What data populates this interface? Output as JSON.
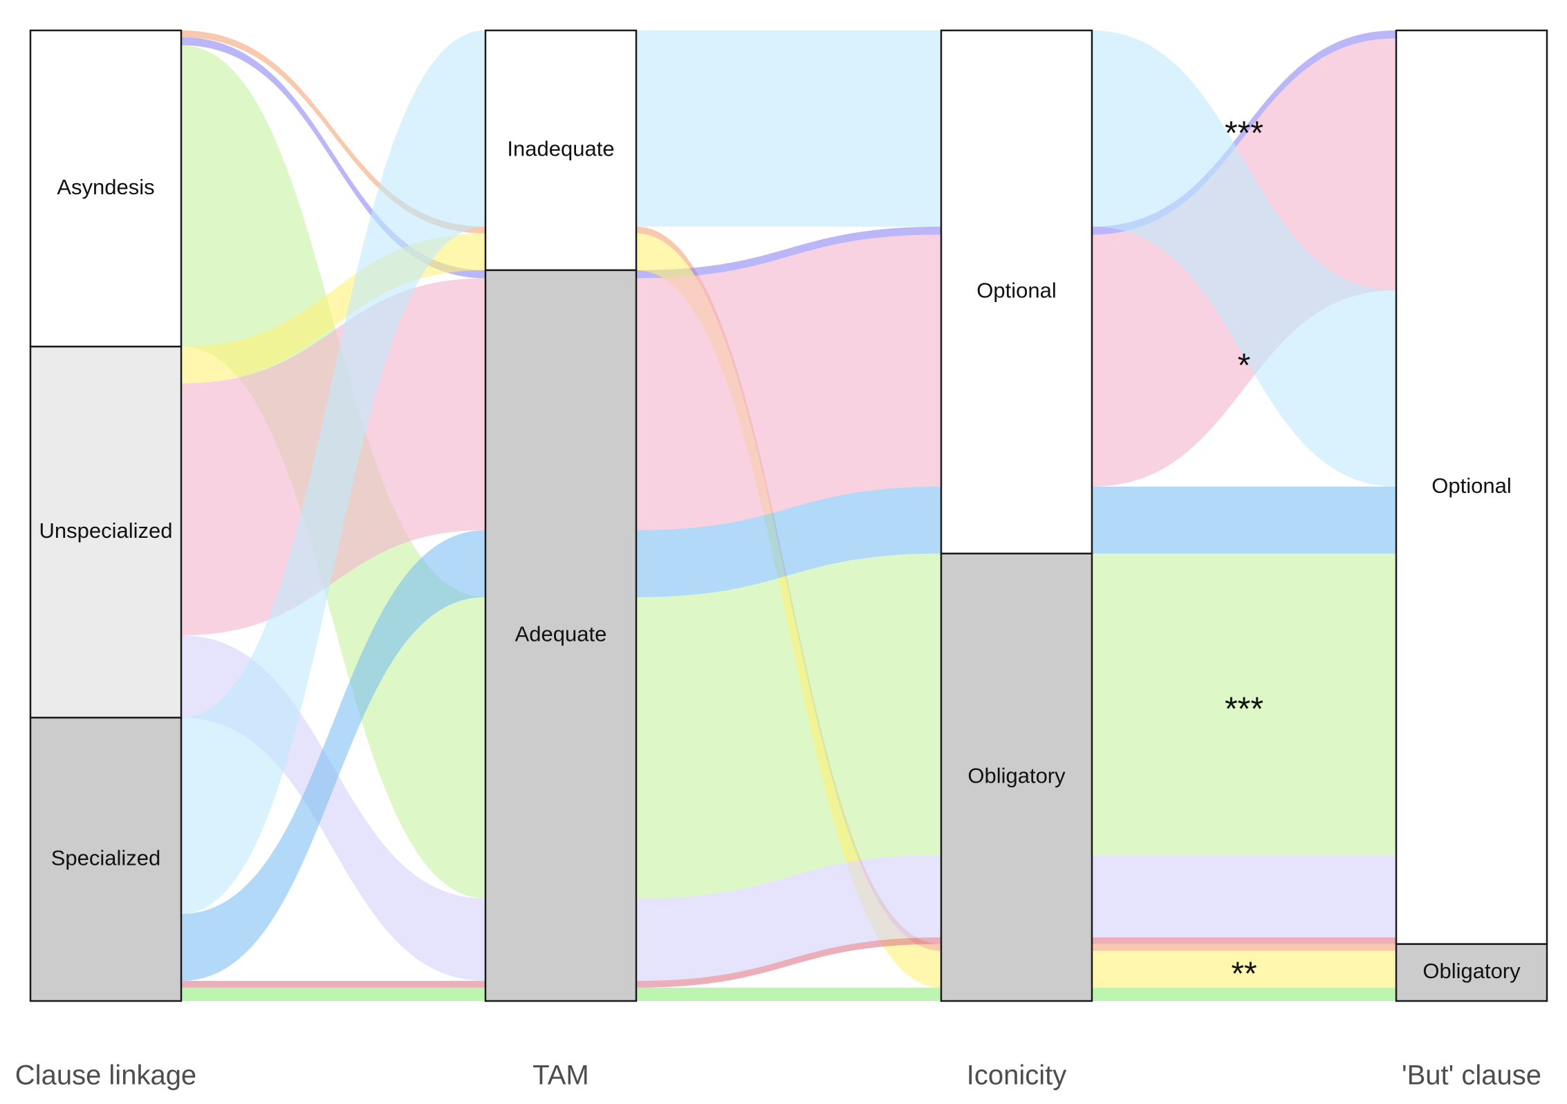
{
  "chart_data": {
    "type": "alluvial",
    "axes": [
      {
        "id": "linkage",
        "label": "Clause linkage",
        "nodes": [
          {
            "id": "asyndesis",
            "label": "Asyndesis",
            "fill": "#ffffff"
          },
          {
            "id": "unspecialized",
            "label": "Unspecialized",
            "fill": "#ebebeb"
          },
          {
            "id": "specialized",
            "label": "Specialized",
            "fill": "#cccccc"
          }
        ]
      },
      {
        "id": "tam",
        "label": "TAM",
        "nodes": [
          {
            "id": "inadequate",
            "label": "Inadequate",
            "fill": "#ffffff"
          },
          {
            "id": "adequate",
            "label": "Adequate",
            "fill": "#cccccc"
          }
        ]
      },
      {
        "id": "iconicity",
        "label": "Iconicity",
        "nodes": [
          {
            "id": "optional",
            "label": "Optional",
            "fill": "#ffffff"
          },
          {
            "id": "obligatory",
            "label": "Obligatory",
            "fill": "#cccccc"
          }
        ]
      },
      {
        "id": "but",
        "label": "'But' clause",
        "nodes": [
          {
            "id": "optional",
            "label": "Optional",
            "fill": "#ffffff"
          },
          {
            "id": "obligatory",
            "label": "Obligatory",
            "fill": "#cccccc"
          }
        ]
      }
    ],
    "flows": [
      {
        "path": [
          "asyndesis",
          "inadequate",
          "obligatory",
          "obligatory"
        ],
        "value": 1,
        "color": "#f4a574"
      },
      {
        "path": [
          "asyndesis",
          "adequate",
          "optional",
          "optional"
        ],
        "value": 1.2,
        "color": "#8c85f2"
      },
      {
        "path": [
          "asyndesis",
          "adequate",
          "obligatory",
          "optional"
        ],
        "value": 45,
        "color": "#c6f3a0"
      },
      {
        "path": [
          "unspecialized",
          "inadequate",
          "obligatory",
          "obligatory"
        ],
        "value": 5.5,
        "color": "#fff176"
      },
      {
        "path": [
          "unspecialized",
          "adequate",
          "optional",
          "optional"
        ],
        "value": 37.6,
        "color": "#f4b4cd"
      },
      {
        "path": [
          "unspecialized",
          "adequate",
          "obligatory",
          "optional"
        ],
        "value": 12.3,
        "color": "#d6d2fa"
      },
      {
        "path": [
          "specialized",
          "inadequate",
          "optional",
          "optional"
        ],
        "value": 29.3,
        "color": "#bfe9fb"
      },
      {
        "path": [
          "specialized",
          "adequate",
          "obligatory",
          "obligatory"
        ],
        "value": 2,
        "color": "#90ef7e"
      },
      {
        "path": [
          "specialized",
          "adequate",
          "optional",
          "optional"
        ],
        "value": 10,
        "color": "#7fbff2"
      },
      {
        "path": [
          "specialized",
          "adequate",
          "obligatory",
          "optional"
        ],
        "value": 1,
        "color": "#e07a8a"
      }
    ],
    "significance": [
      {
        "flow_index": 6,
        "label": "***"
      },
      {
        "flow_index": 4,
        "label": "*"
      },
      {
        "flow_index": 2,
        "label": "***"
      },
      {
        "flow_index": 3,
        "label": "**"
      }
    ]
  }
}
